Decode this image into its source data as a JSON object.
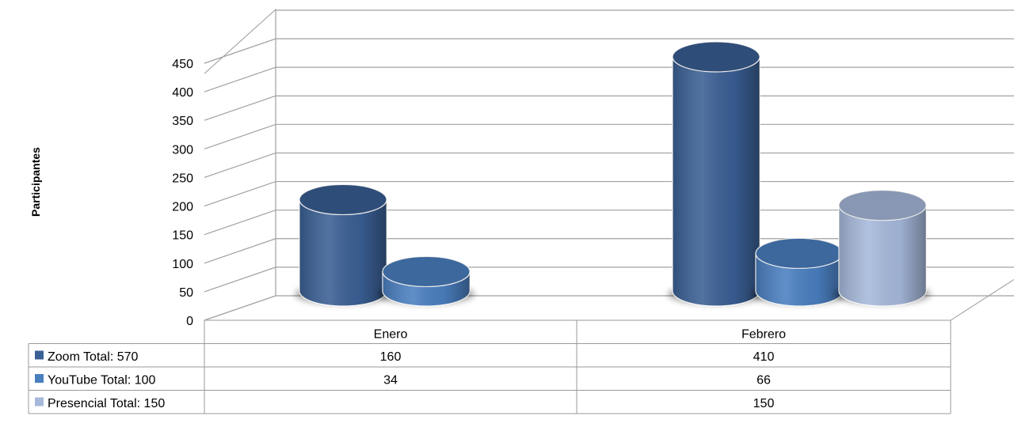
{
  "chart_data": {
    "type": "bar",
    "style": "3d-cylinder",
    "title": "",
    "xlabel": "",
    "ylabel": "Participantes",
    "ylim": [
      0,
      450
    ],
    "ytick_step": 50,
    "yticks": [
      "0",
      "50",
      "100",
      "150",
      "200",
      "250",
      "300",
      "350",
      "400",
      "450"
    ],
    "categories": [
      "Enero",
      "Febrero"
    ],
    "legend_placement": "data-table",
    "grid": true,
    "series": [
      {
        "name": "Zoom  Total: 570",
        "color": "#3a5f94",
        "values": [
          160,
          410
        ]
      },
      {
        "name": "YouTube  Total: 100",
        "color": "#4a7fc0",
        "values": [
          34,
          66
        ]
      },
      {
        "name": "Presencial Total: 150",
        "color": "#a6b9db",
        "values": [
          null,
          150
        ]
      }
    ],
    "table": {
      "rows": [
        [
          "160",
          "410"
        ],
        [
          "34",
          "66"
        ],
        [
          "",
          "150"
        ]
      ]
    }
  }
}
